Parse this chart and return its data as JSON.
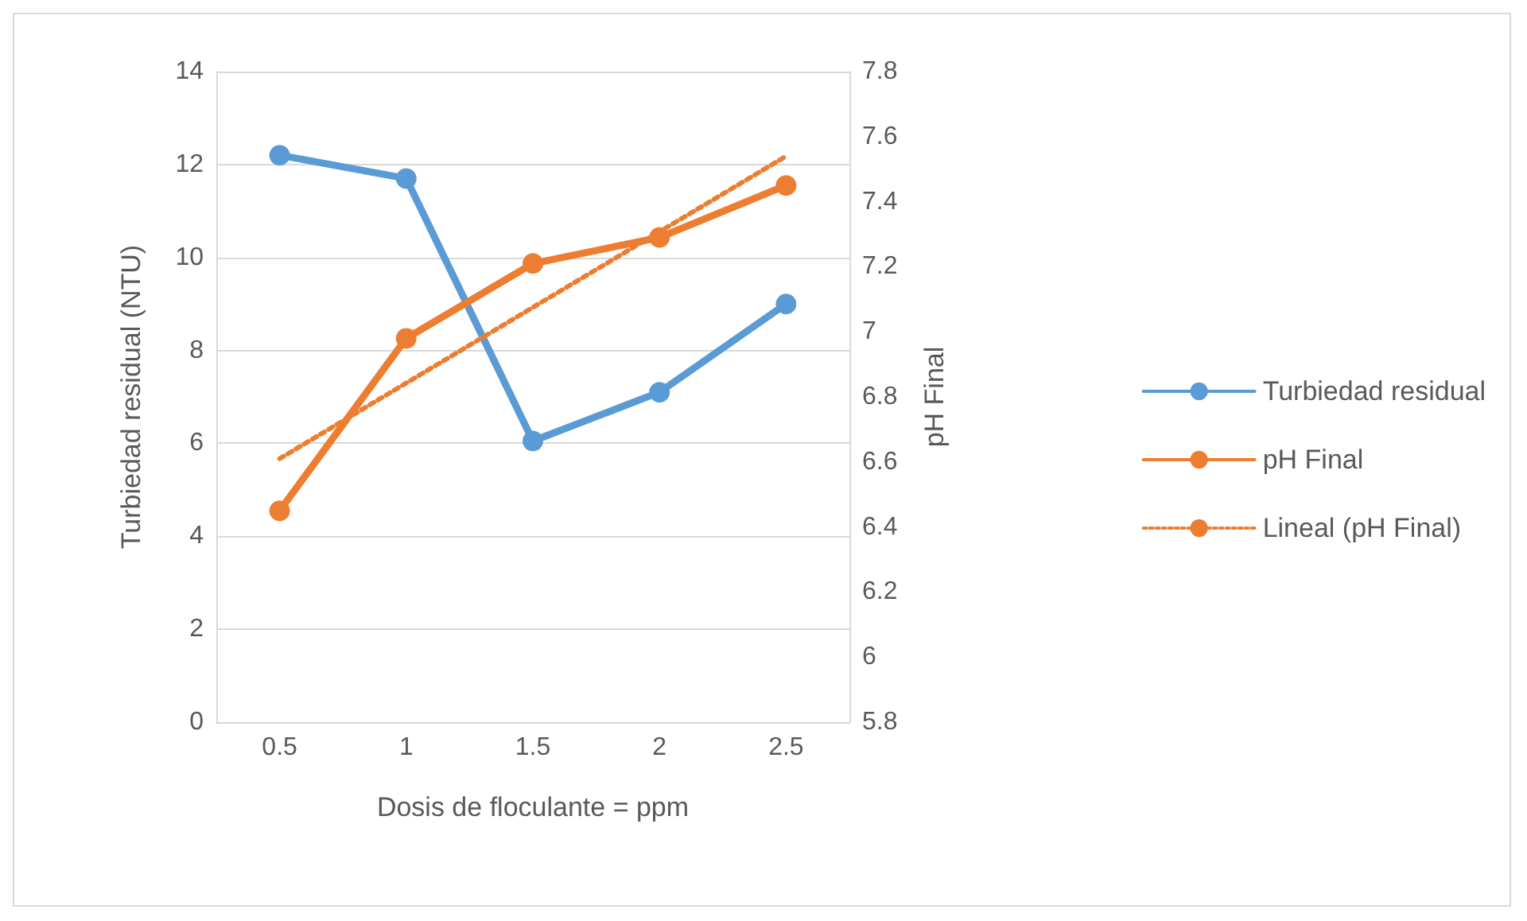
{
  "chart_data": {
    "type": "line",
    "xlabel": "Dosis de floculante = ppm",
    "ylabel": "Turbiedad residual (NTU)",
    "y2label": "pH Final",
    "categories": [
      "0.5",
      "1",
      "1.5",
      "2",
      "2.5"
    ],
    "series": [
      {
        "name": "Turbiedad residual",
        "color": "#5b9bd5",
        "values": [
          12.2,
          11.7,
          6.05,
          7.1,
          9.0
        ]
      },
      {
        "name": "pH Final",
        "color": "#ed7d31",
        "axis": "y2",
        "values": [
          6.45,
          6.98,
          7.21,
          7.29,
          7.45
        ]
      },
      {
        "name": "Lineal (pH Final)",
        "color": "#ed7d31",
        "axis": "y2",
        "x": [
          "0.5",
          "2.5"
        ],
        "values": [
          6.61,
          7.54
        ],
        "line_style": "dotted",
        "marker": "none"
      }
    ],
    "ylim": [
      0,
      14
    ],
    "yticks": [
      0,
      2,
      4,
      6,
      8,
      10,
      12,
      14
    ],
    "y2lim": [
      5.8,
      7.8
    ],
    "y2ticks": [
      {
        "value": 5.8,
        "label": "5.8"
      },
      {
        "value": 6,
        "label": "6"
      },
      {
        "value": 6.2,
        "label": "6.2"
      },
      {
        "value": 6.4,
        "label": "6.4"
      },
      {
        "value": 6.6,
        "label": "6.6"
      },
      {
        "value": 6.8,
        "label": "6.8"
      },
      {
        "value": 7,
        "label": "7"
      },
      {
        "value": 7.2,
        "label": "7.2"
      },
      {
        "value": 7.4,
        "label": "7.4"
      },
      {
        "value": 7.6,
        "label": "7.6"
      },
      {
        "value": 7.8,
        "label": "7.8"
      }
    ],
    "grid": "y",
    "legend": "right",
    "marker": "circle",
    "line_style": "solid"
  }
}
